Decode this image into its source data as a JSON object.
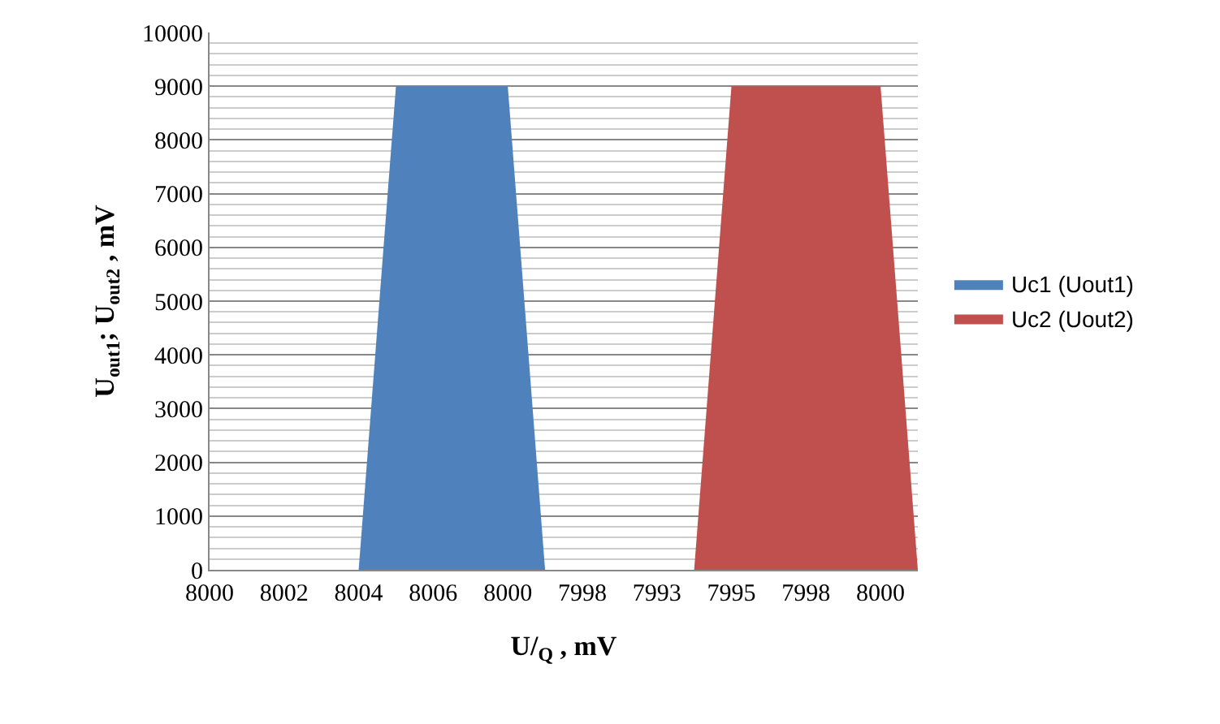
{
  "chart_data": {
    "type": "area",
    "xlabel": "U/$_{Q}$ , mV",
    "ylabel": "U$_{out1}$; U$_{out2}$ , mV",
    "categories": [
      "8000",
      null,
      "8002",
      null,
      "8004",
      null,
      "8006",
      null,
      "8000",
      null,
      "7998",
      null,
      "7993",
      null,
      "7995",
      null,
      "7998",
      null,
      "8000",
      null
    ],
    "series": [
      {
        "name": "Uc1 (Uout1)",
        "color": "#4f81bd",
        "values": [
          null,
          null,
          null,
          null,
          0,
          9000,
          9000,
          9000,
          9000,
          0,
          null,
          null,
          null,
          null,
          null,
          null,
          null,
          null,
          null,
          null
        ]
      },
      {
        "name": "Uc2 (Uout2)",
        "color": "#c0504d",
        "values": [
          null,
          null,
          null,
          null,
          null,
          null,
          null,
          null,
          null,
          null,
          null,
          null,
          null,
          0,
          9000,
          9000,
          9000,
          9000,
          9000,
          0
        ]
      }
    ],
    "ylim": [
      0,
      10000
    ],
    "yticks": [
      0,
      1000,
      2000,
      3000,
      4000,
      5000,
      6000,
      7000,
      8000,
      9000,
      10000
    ],
    "grid": "y",
    "legend": "right"
  }
}
